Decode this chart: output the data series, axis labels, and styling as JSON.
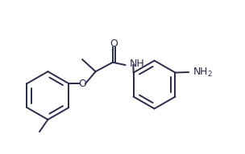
{
  "background_color": "#ffffff",
  "line_color": "#2b2b4b",
  "line_width": 1.4,
  "font_size": 8.5,
  "fig_width": 3.04,
  "fig_height": 1.92,
  "dpi": 100,
  "xlim": [
    0,
    10.5
  ],
  "ylim": [
    0,
    7.0
  ]
}
